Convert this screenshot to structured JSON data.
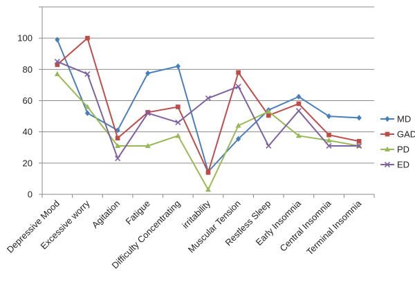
{
  "chart_data": {
    "type": "line",
    "categories": [
      "Depressive Mood",
      "Excessive worry",
      "Agitation",
      "Fatigue",
      "Difficulty Concentrating",
      "irritability",
      "Muscular Tension",
      "Restless Sleep",
      "Early Insomnia",
      "Central Insomnia",
      "Terminal Insomnia"
    ],
    "series": [
      {
        "name": "MD",
        "color": "#4a7ebb",
        "marker": "diamond",
        "values": [
          99,
          52,
          41,
          77.5,
          82,
          14.5,
          35.5,
          54,
          62.5,
          50,
          49
        ]
      },
      {
        "name": "GAD",
        "color": "#be4b48",
        "marker": "square",
        "values": [
          83,
          100,
          36,
          52.5,
          56,
          14,
          78,
          50.5,
          58,
          38,
          34
        ]
      },
      {
        "name": "PD",
        "color": "#98b954",
        "marker": "triangle",
        "values": [
          77,
          56,
          31,
          31,
          37.5,
          3,
          44,
          53,
          37.5,
          34.5,
          31
        ]
      },
      {
        "name": "ED",
        "color": "#7d60a0",
        "marker": "x",
        "values": [
          85,
          77,
          23,
          52,
          46,
          61.5,
          69,
          31,
          53.5,
          31,
          31
        ]
      }
    ],
    "yticks": [
      0,
      20,
      40,
      60,
      80,
      100
    ],
    "ylim": [
      0,
      120
    ],
    "grid": "horizontal",
    "legend_position": "right"
  }
}
